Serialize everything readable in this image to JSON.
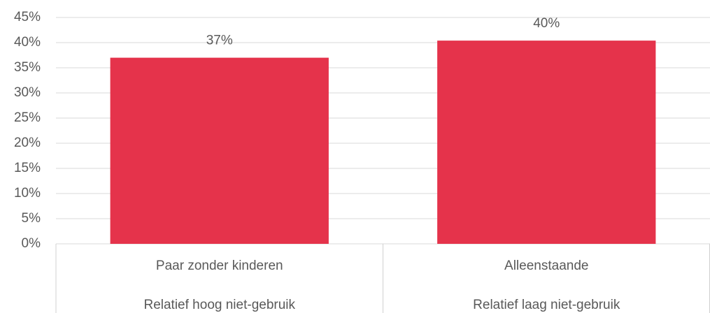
{
  "chart_data": {
    "type": "bar",
    "categories": [
      "Paar zonder kinderen",
      "Alleenstaande"
    ],
    "groups": [
      "Relatief hoog niet-gebruik",
      "Relatief laag niet-gebruik"
    ],
    "values": [
      37,
      40.4
    ],
    "value_labels": [
      "37%",
      "40%"
    ],
    "color": "#e5334b",
    "ylim": [
      0,
      45
    ],
    "yticks": [
      {
        "value": 0,
        "label": "0%"
      },
      {
        "value": 5,
        "label": "5%"
      },
      {
        "value": 10,
        "label": "10%"
      },
      {
        "value": 15,
        "label": "15%"
      },
      {
        "value": 20,
        "label": "20%"
      },
      {
        "value": 25,
        "label": "25%"
      },
      {
        "value": 30,
        "label": "30%"
      },
      {
        "value": 35,
        "label": "35%"
      },
      {
        "value": 40,
        "label": "40%"
      },
      {
        "value": 45,
        "label": "45%"
      }
    ],
    "grid": true
  }
}
